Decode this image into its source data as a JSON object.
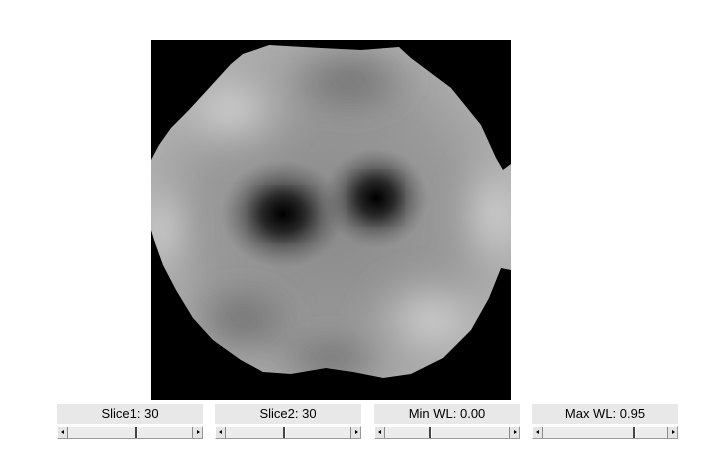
{
  "viewer": {
    "image_description_icon": "grayscale-slice-image"
  },
  "controls": [
    {
      "id": "slice1",
      "label": "Slice1: 30",
      "fraction": 0.55
    },
    {
      "id": "slice2",
      "label": "Slice2: 30",
      "fraction": 0.47
    },
    {
      "id": "minwl",
      "label": "Min WL: 0.00",
      "fraction": 0.36
    },
    {
      "id": "maxwl",
      "label": "Max WL: 0.95",
      "fraction": 0.73
    }
  ]
}
